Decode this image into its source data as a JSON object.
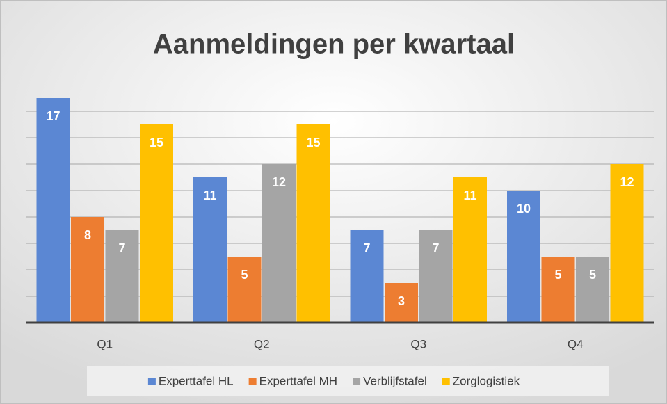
{
  "chart_data": {
    "type": "bar",
    "title": "Aanmeldingen per kwartaal",
    "categories": [
      "Q1",
      "Q2",
      "Q3",
      "Q4"
    ],
    "series": [
      {
        "name": "Experttafel HL",
        "color": "#5b87d3",
        "values": [
          17,
          11,
          7,
          10
        ]
      },
      {
        "name": "Experttafel MH",
        "color": "#ed7d31",
        "values": [
          8,
          5,
          3,
          5
        ]
      },
      {
        "name": "Verblijfstafel",
        "color": "#a5a5a5",
        "values": [
          7,
          12,
          7,
          5
        ]
      },
      {
        "name": "Zorglogistiek",
        "color": "#ffc000",
        "values": [
          15,
          15,
          11,
          12
        ]
      }
    ],
    "ylim": [
      0,
      18
    ],
    "yticks": [
      0,
      2,
      4,
      6,
      8,
      10,
      12,
      14,
      16
    ],
    "grid": true,
    "legend": "bottom"
  }
}
